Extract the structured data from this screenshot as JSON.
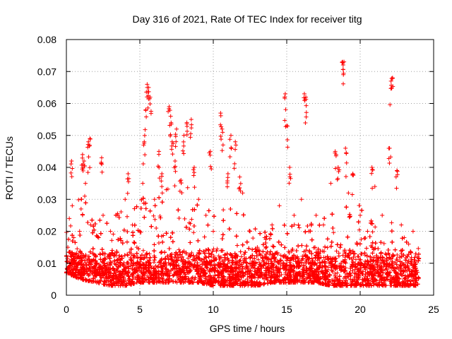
{
  "chart_data": {
    "type": "scatter",
    "title": "Day 316 of 2021, Rate Of TEC Index for receiver titg",
    "xlabel": "GPS time / hours",
    "ylabel": "ROTI / TECUs",
    "xlim": [
      0,
      25
    ],
    "ylim": [
      0,
      0.08
    ],
    "xticks": [
      0,
      5,
      10,
      15,
      20,
      25
    ],
    "xtick_labels": [
      "0",
      "5",
      "10",
      "15",
      "20",
      "25"
    ],
    "yticks": [
      0,
      0.01,
      0.02,
      0.03,
      0.04,
      0.05,
      0.06,
      0.07,
      0.08
    ],
    "ytick_labels": [
      "0",
      "0.01",
      "0.02",
      "0.03",
      "0.04",
      "0.05",
      "0.06",
      "0.07",
      "0.08"
    ],
    "grid": true,
    "marker": "+",
    "color": "#ff0000",
    "series": [
      {
        "name": "ROTI",
        "x": [
          0.1,
          0.2,
          0.35,
          0.4,
          0.5,
          0.7,
          0.9,
          1.0,
          1.1,
          1.2,
          1.25,
          1.3,
          1.5,
          1.6,
          1.65,
          2.0,
          2.2,
          2.4,
          2.5,
          2.6,
          3.0,
          3.5,
          4.0,
          4.2,
          4.5,
          4.8,
          5.0,
          5.2,
          5.3,
          5.4,
          5.5,
          5.6,
          5.7,
          6.0,
          6.3,
          6.5,
          6.8,
          7.0,
          7.1,
          7.2,
          7.4,
          7.5,
          7.8,
          8.0,
          8.2,
          8.5,
          8.7,
          9.0,
          9.5,
          9.8,
          10.0,
          10.5,
          10.6,
          11.0,
          11.2,
          11.5,
          11.8,
          12.0,
          12.5,
          13.0,
          13.5,
          14.0,
          14.5,
          14.9,
          15.0,
          15.2,
          15.5,
          16.0,
          16.2,
          16.3,
          16.5,
          17.0,
          17.5,
          18.0,
          18.3,
          18.5,
          18.8,
          18.9,
          19.0,
          19.2,
          19.5,
          20.0,
          20.5,
          20.8,
          21.0,
          21.5,
          22.0,
          22.1,
          22.2,
          22.5,
          22.8,
          23.0,
          23.3,
          23.6,
          23.9
        ],
        "y": [
          0.015,
          0.024,
          0.042,
          0.028,
          0.018,
          0.013,
          0.02,
          0.027,
          0.044,
          0.042,
          0.031,
          0.035,
          0.048,
          0.049,
          0.022,
          0.012,
          0.018,
          0.043,
          0.025,
          0.01,
          0.02,
          0.025,
          0.03,
          0.038,
          0.022,
          0.015,
          0.02,
          0.035,
          0.048,
          0.058,
          0.066,
          0.065,
          0.062,
          0.03,
          0.045,
          0.038,
          0.033,
          0.059,
          0.056,
          0.048,
          0.042,
          0.052,
          0.036,
          0.05,
          0.054,
          0.055,
          0.04,
          0.03,
          0.025,
          0.045,
          0.02,
          0.057,
          0.052,
          0.038,
          0.05,
          0.048,
          0.037,
          0.032,
          0.02,
          0.015,
          0.018,
          0.022,
          0.028,
          0.063,
          0.053,
          0.04,
          0.025,
          0.03,
          0.063,
          0.062,
          0.02,
          0.025,
          0.022,
          0.035,
          0.045,
          0.04,
          0.073,
          0.073,
          0.046,
          0.032,
          0.038,
          0.025,
          0.02,
          0.04,
          0.034,
          0.025,
          0.046,
          0.067,
          0.068,
          0.039,
          0.022,
          0.018,
          0.016,
          0.02,
          0.012
        ]
      }
    ],
    "density_band": {
      "description": "dense cloud of points",
      "min_by_hour": [
        0.007,
        0.005,
        0.004,
        0.003,
        0.003,
        0.004,
        0.004,
        0.004,
        0.004,
        0.004,
        0.003,
        0.003,
        0.003,
        0.003,
        0.004,
        0.004,
        0.004,
        0.004,
        0.003,
        0.003,
        0.003,
        0.003,
        0.003,
        0.003,
        0.003
      ],
      "max_by_hour": [
        0.028,
        0.032,
        0.026,
        0.024,
        0.028,
        0.03,
        0.034,
        0.035,
        0.035,
        0.03,
        0.026,
        0.028,
        0.026,
        0.02,
        0.022,
        0.025,
        0.024,
        0.022,
        0.026,
        0.03,
        0.028,
        0.022,
        0.025,
        0.018,
        0.016
      ]
    }
  }
}
